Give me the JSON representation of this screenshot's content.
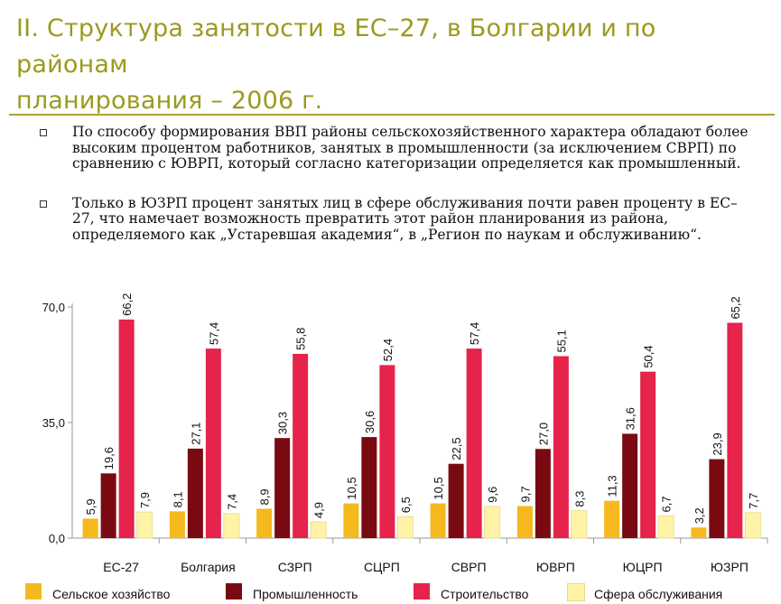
{
  "header": {
    "title_line1": "II. Структура занятости в ЕС–27, в Болгарии и по районам",
    "title_line2": "планирования – 2006 г."
  },
  "bullets": [
    "По способу формирования ВВП районы сельскохозяйственного характера обладают более высоким процентом работников, занятых в промышленности (за исключением СВРП) по сравнению с ЮВРП, который согласно категоризации определяется как промышленный.",
    "Только в ЮЗРП процент занятых лиц в сфере обслуживания почти равен проценту в ЕС–27, что намечает возможность превратить этот район планирования из района, определяемого как „Устаревшая академия“, в „Регион по наукам и обслуживанию“."
  ],
  "colors": {
    "title": "#9a9a1e",
    "rule": "#a6a638",
    "series": [
      "#f5b91e",
      "#7a0a12",
      "#e5234b",
      "#fff3a8"
    ]
  },
  "chart_data": {
    "type": "bar",
    "categories": [
      "ЕС-27",
      "Болгария",
      "СЗРП",
      "СЦРП",
      "СВРП",
      "ЮВРП",
      "ЮЦРП",
      "ЮЗРП"
    ],
    "series": [
      {
        "name": "Сельское хозяйство",
        "values": [
          5.9,
          8.1,
          8.9,
          10.5,
          10.5,
          9.7,
          11.3,
          3.2
        ]
      },
      {
        "name": "Промышленность",
        "values": [
          19.6,
          27.1,
          30.3,
          30.6,
          22.5,
          27.0,
          31.6,
          23.9
        ]
      },
      {
        "name": "Строительство",
        "values": [
          66.2,
          57.4,
          55.8,
          52.4,
          57.4,
          55.1,
          50.4,
          65.2
        ]
      },
      {
        "name": "Сфера обслуживания",
        "values": [
          7.9,
          7.4,
          4.9,
          6.5,
          9.6,
          8.3,
          6.7,
          7.7
        ]
      }
    ],
    "value_labels": [
      [
        "5,9",
        "19,6",
        "66,2",
        "7,9"
      ],
      [
        "8,1",
        "27,1",
        "57,4",
        "7,4"
      ],
      [
        "8,9",
        "30,3",
        "55,8",
        "4,9"
      ],
      [
        "10,5",
        "30,6",
        "52,4",
        "6,5"
      ],
      [
        "10,5",
        "22,5",
        "57,4",
        "9,6"
      ],
      [
        "9,7",
        "27,0",
        "55,1",
        "8,3"
      ],
      [
        "11,3",
        "31,6",
        "50,4",
        "6,7"
      ],
      [
        "3,2",
        "23,9",
        "65,2",
        "7,7"
      ]
    ],
    "yticks": [
      0,
      35,
      70
    ],
    "ytick_labels": [
      "0,0",
      "35,0",
      "70,0"
    ],
    "ylim": [
      0,
      70
    ],
    "title": "",
    "xlabel": "",
    "ylabel": "",
    "grid": false,
    "legend": "bottom"
  }
}
